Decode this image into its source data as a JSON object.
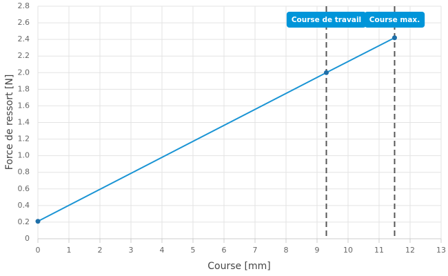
{
  "chart_data": {
    "type": "line",
    "x_label": "Course [mm]",
    "y_label": "Force de ressort [N]",
    "x": [
      0,
      9.3,
      11.5
    ],
    "series": [
      {
        "color": "#1a94d4",
        "values": [
          0.21,
          2.0,
          2.42
        ]
      }
    ],
    "xlim": [
      0,
      13
    ],
    "xticks": [
      0,
      1,
      2,
      3,
      4,
      5,
      6,
      7,
      8,
      9,
      10,
      11,
      12,
      13
    ],
    "ylim": [
      0,
      2.8
    ],
    "yticks": [
      0,
      0.2,
      0.4,
      0.6,
      0.8,
      {
        "value": 1,
        "label": "1.0"
      },
      1.2,
      1.4,
      1.6,
      1.8,
      {
        "value": 2,
        "label": "2.0"
      },
      2.2,
      2.4,
      2.6,
      2.8
    ],
    "grid": true,
    "annotations": [
      {
        "x": 9.3,
        "label": "Course de travail"
      },
      {
        "x": 11.5,
        "label": "Course max."
      }
    ]
  }
}
